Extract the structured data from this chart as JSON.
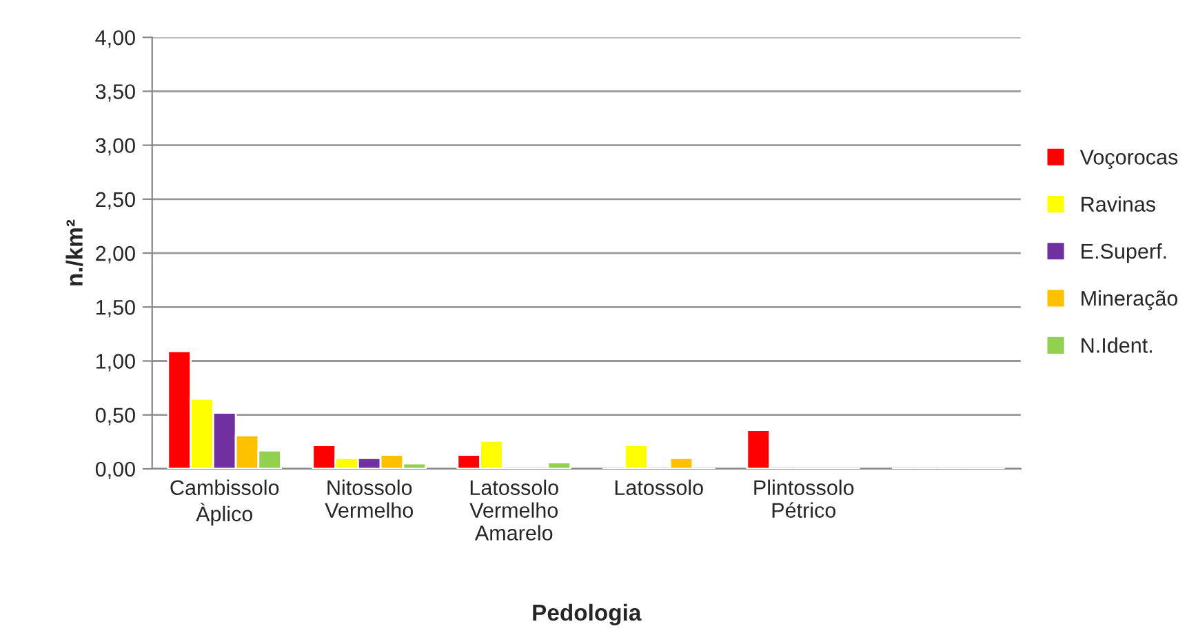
{
  "chart_data": {
    "type": "bar",
    "xlabel": "Pedologia",
    "ylabel": "n./km²",
    "categories": [
      "Cambissolo\nÀplico",
      "Nitossolo\nVermelho",
      "Latossolo\nVermelho\nAmarelo",
      "Latossolo",
      "Plintossolo\nPétrico",
      null
    ],
    "series": [
      {
        "name": "Voçorocas",
        "color": "#ff0000",
        "values": [
          1.09,
          0.22,
          0.13,
          null,
          0.36,
          null
        ]
      },
      {
        "name": "Ravinas",
        "color": "#ffff00",
        "values": [
          0.65,
          0.1,
          0.26,
          0.22,
          null,
          null
        ]
      },
      {
        "name": "E.Superf.",
        "color": "#7030a0",
        "values": [
          0.52,
          0.1,
          null,
          null,
          null,
          null
        ]
      },
      {
        "name": "Mineração",
        "color": "#ffc000",
        "values": [
          0.31,
          0.13,
          null,
          0.1,
          null,
          null
        ]
      },
      {
        "name": "N.Ident.",
        "color": "#92d050",
        "values": [
          0.17,
          0.05,
          0.06,
          null,
          null,
          null
        ]
      }
    ],
    "ylim": [
      0,
      4
    ],
    "yticks": [
      {
        "value": 0,
        "label": "0,00"
      },
      {
        "value": 0.5,
        "label": "0,50"
      },
      {
        "value": 1,
        "label": "1,00"
      },
      {
        "value": 1.5,
        "label": "1,50"
      },
      {
        "value": 2,
        "label": "2,00"
      },
      {
        "value": 2.5,
        "label": "2,50"
      },
      {
        "value": 3,
        "label": "3,00"
      },
      {
        "value": 3.5,
        "label": "3,50"
      },
      {
        "value": 4,
        "label": "4,00"
      }
    ],
    "grid": "y",
    "legend": "right"
  }
}
